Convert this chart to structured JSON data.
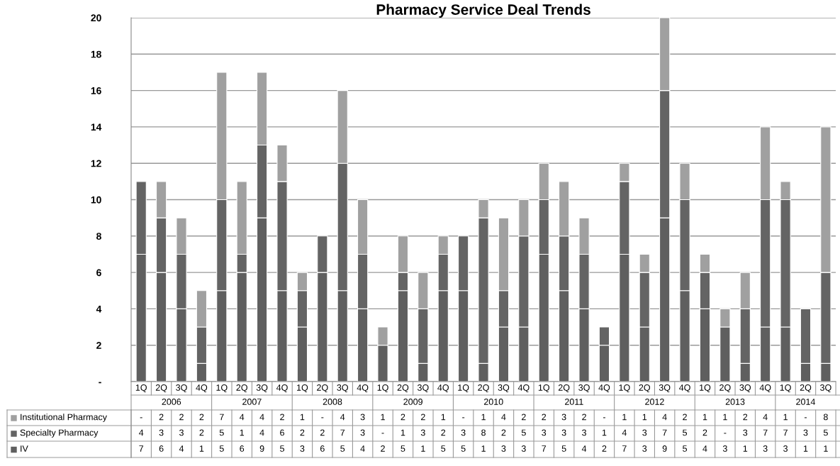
{
  "chart_data": {
    "type": "bar",
    "title": "Pharmacy Service Deal Trends",
    "stacked": true,
    "data_labels": true,
    "categories": [
      "1Q",
      "2Q",
      "3Q",
      "4Q",
      "1Q",
      "2Q",
      "3Q",
      "4Q",
      "1Q",
      "2Q",
      "3Q",
      "4Q",
      "1Q",
      "2Q",
      "3Q",
      "4Q",
      "1Q",
      "2Q",
      "3Q",
      "4Q",
      "1Q",
      "2Q",
      "3Q",
      "4Q",
      "1Q",
      "2Q",
      "3Q",
      "4Q",
      "1Q",
      "2Q",
      "3Q",
      "4Q",
      "1Q",
      "2Q",
      "3Q"
    ],
    "annotations": [
      "2006",
      "2007",
      "2008",
      "2009",
      "2010",
      "2011",
      "2012",
      "2013",
      "2014"
    ],
    "series": [
      {
        "name": "IV",
        "color": "#5f5f5f",
        "values": [
          7,
          6,
          4,
          1,
          5,
          6,
          9,
          5,
          3,
          6,
          5,
          4,
          2,
          5,
          1,
          5,
          5,
          1,
          3,
          3,
          7,
          5,
          4,
          2,
          7,
          3,
          9,
          5,
          4,
          3,
          1,
          3,
          3,
          1,
          1
        ],
        "value_labels": [
          "7",
          "6",
          "4",
          "1",
          "5",
          "6",
          "9",
          "5",
          "3",
          "6",
          "5",
          "4",
          "2",
          "5",
          "1",
          "5",
          "5",
          "1",
          "3",
          "3",
          "7",
          "5",
          "4",
          "2",
          "7",
          "3",
          "9",
          "5",
          "4",
          "3",
          "1",
          "3",
          "3",
          "1",
          "1"
        ]
      },
      {
        "name": "Specialty Pharmacy",
        "color": "#646464",
        "values": [
          4,
          3,
          3,
          2,
          5,
          1,
          4,
          6,
          2,
          2,
          7,
          3,
          0,
          1,
          3,
          2,
          3,
          8,
          2,
          5,
          3,
          3,
          3,
          1,
          4,
          3,
          7,
          5,
          2,
          0,
          3,
          7,
          7,
          3,
          5
        ],
        "value_labels": [
          "4",
          "3",
          "3",
          "2",
          "5",
          "1",
          "4",
          "6",
          "2",
          "2",
          "7",
          "3",
          "-",
          "1",
          "3",
          "2",
          "3",
          "8",
          "2",
          "5",
          "3",
          "3",
          "3",
          "1",
          "4",
          "3",
          "7",
          "5",
          "2",
          "-",
          "3",
          "7",
          "7",
          "3",
          "5"
        ]
      },
      {
        "name": "Institutional Pharmacy",
        "color": "#a0a0a0",
        "values": [
          0,
          2,
          2,
          2,
          7,
          4,
          4,
          2,
          1,
          0,
          4,
          3,
          1,
          2,
          2,
          1,
          0,
          1,
          4,
          2,
          2,
          3,
          2,
          0,
          1,
          1,
          4,
          2,
          1,
          1,
          2,
          4,
          1,
          0,
          8
        ],
        "value_labels": [
          "-",
          "2",
          "2",
          "2",
          "7",
          "4",
          "4",
          "2",
          "1",
          "-",
          "4",
          "3",
          "1",
          "2",
          "2",
          "1",
          "-",
          "1",
          "4",
          "2",
          "2",
          "3",
          "2",
          "-",
          "1",
          "1",
          "4",
          "2",
          "1",
          "1",
          "2",
          "4",
          "1",
          "-",
          "8"
        ]
      }
    ],
    "ylim": [
      0,
      20
    ],
    "yticks": [
      {
        "value": 0,
        "label": "-"
      },
      2,
      4,
      6,
      8,
      10,
      12,
      14,
      16,
      18,
      20
    ],
    "grid": "y",
    "legend": "bottom left"
  }
}
